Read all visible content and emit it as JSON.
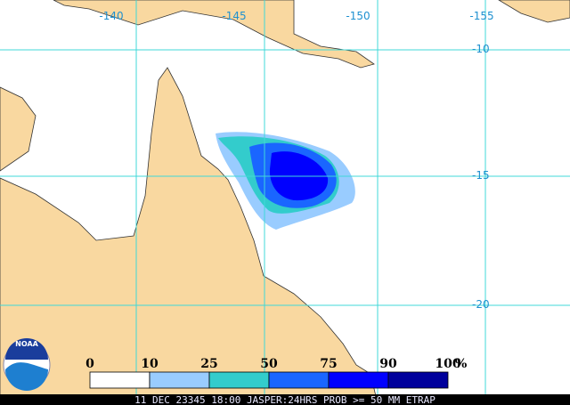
{
  "map": {
    "longitude_labels": [
      "-140",
      "-145",
      "-150",
      "-155"
    ],
    "latitude_labels": [
      "-10",
      "-15",
      "-20"
    ],
    "legend": {
      "ticks": [
        "0",
        "10",
        "25",
        "50",
        "75",
        "90",
        "100"
      ],
      "unit": "%",
      "colors": [
        "#ffffff",
        "#99ccff",
        "#33cccc",
        "#1a66ff",
        "#0000ff",
        "#00009c"
      ]
    },
    "logo": "NOAA",
    "footer": "11 DEC 23345 18:00 JASPER:24HRS PROB >= 50 MM ETRAP"
  }
}
